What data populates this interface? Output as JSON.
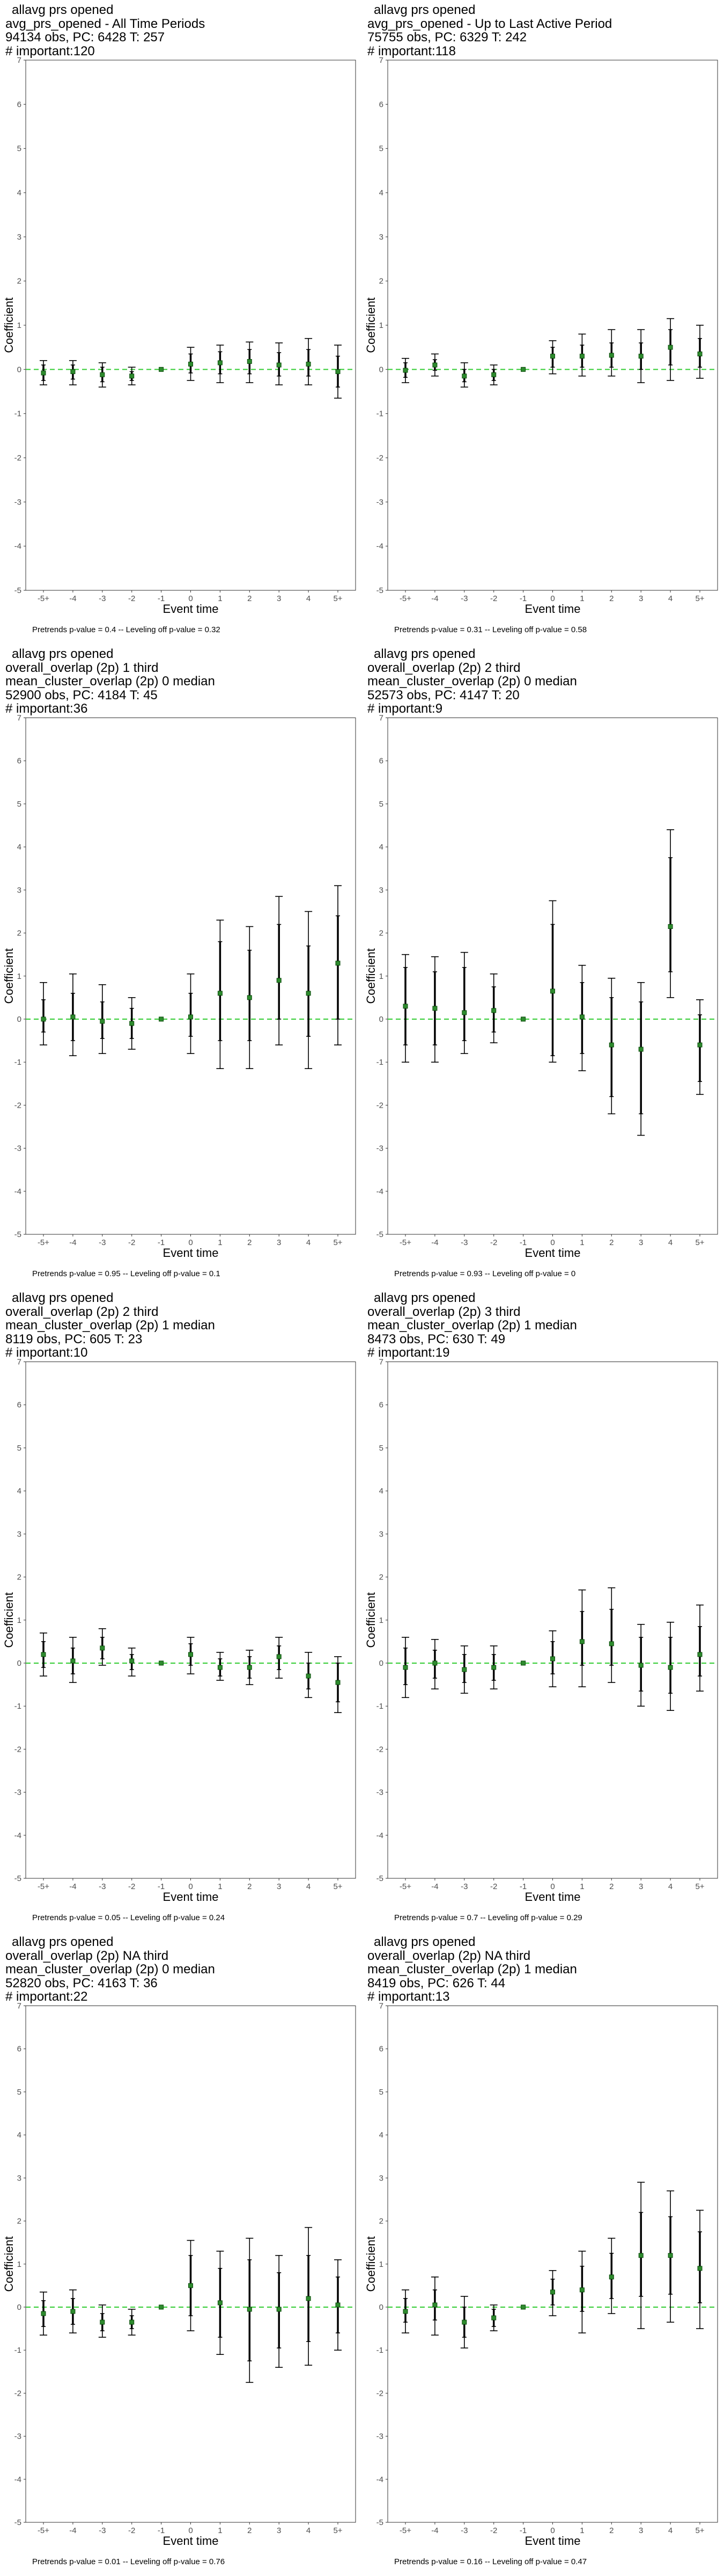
{
  "chart_data": [
    {
      "type": "scatter",
      "title_lines": [
        " allavg prs opened",
        "avg_prs_opened - All Time Periods",
        "94134 obs, PC: 6428 T: 257",
        "# important:120"
      ],
      "footnote": "Pretrends p-value = 0.4 -- Leveling off p-value = 0.32",
      "xlabel": "Event time",
      "ylabel": "Coefficient",
      "ylim": [
        -5,
        7
      ],
      "categories": [
        "-5+",
        "-4",
        "-3",
        "-2",
        "-1",
        "0",
        "1",
        "2",
        "3",
        "4",
        "5+"
      ],
      "estimates": [
        -0.08,
        -0.05,
        -0.12,
        -0.15,
        0,
        0.12,
        0.15,
        0.18,
        0.1,
        0.12,
        -0.05
      ],
      "ci_outer": [
        [
          -0.35,
          0.2
        ],
        [
          -0.35,
          0.2
        ],
        [
          -0.4,
          0.15
        ],
        [
          -0.35,
          0.05
        ],
        [
          0,
          0
        ],
        [
          -0.25,
          0.5
        ],
        [
          -0.3,
          0.55
        ],
        [
          -0.3,
          0.62
        ],
        [
          -0.35,
          0.6
        ],
        [
          -0.35,
          0.7
        ],
        [
          -0.65,
          0.55
        ]
      ],
      "ci_inner": [
        [
          -0.25,
          0.1
        ],
        [
          -0.22,
          0.1
        ],
        [
          -0.28,
          0.05
        ],
        [
          -0.25,
          -0.05
        ],
        [
          0,
          0
        ],
        [
          -0.08,
          0.35
        ],
        [
          -0.1,
          0.4
        ],
        [
          -0.1,
          0.45
        ],
        [
          -0.15,
          0.38
        ],
        [
          -0.15,
          0.45
        ],
        [
          -0.4,
          0.3
        ]
      ]
    },
    {
      "type": "scatter",
      "title_lines": [
        " allavg prs opened",
        "avg_prs_opened - Up to Last Active Period",
        "75755 obs, PC: 6329 T: 242",
        "# important:118"
      ],
      "footnote": "Pretrends p-value = 0.31 -- Leveling off p-value = 0.58",
      "xlabel": "Event time",
      "ylabel": "Coefficient",
      "ylim": [
        -5,
        7
      ],
      "categories": [
        "-5+",
        "-4",
        "-3",
        "-2",
        "-1",
        "0",
        "1",
        "2",
        "3",
        "4",
        "5+"
      ],
      "estimates": [
        -0.02,
        0.1,
        -0.15,
        -0.12,
        0,
        0.3,
        0.3,
        0.32,
        0.3,
        0.5,
        0.35
      ],
      "ci_outer": [
        [
          -0.3,
          0.25
        ],
        [
          -0.15,
          0.35
        ],
        [
          -0.4,
          0.15
        ],
        [
          -0.35,
          0.1
        ],
        [
          0,
          0
        ],
        [
          -0.1,
          0.65
        ],
        [
          -0.15,
          0.8
        ],
        [
          -0.15,
          0.9
        ],
        [
          -0.3,
          0.9
        ],
        [
          -0.25,
          1.15
        ],
        [
          -0.2,
          1.0
        ]
      ],
      "ci_inner": [
        [
          -0.18,
          0.15
        ],
        [
          -0.02,
          0.22
        ],
        [
          -0.28,
          0.0
        ],
        [
          -0.25,
          0.0
        ],
        [
          0,
          0
        ],
        [
          0.05,
          0.5
        ],
        [
          0.05,
          0.55
        ],
        [
          0.05,
          0.6
        ],
        [
          0.0,
          0.6
        ],
        [
          0.1,
          0.9
        ],
        [
          0.05,
          0.7
        ]
      ]
    },
    {
      "type": "scatter",
      "title_lines": [
        " allavg prs opened",
        "overall_overlap (2p) 1 third",
        "mean_cluster_overlap (2p) 0 median",
        "52900 obs, PC: 4184 T: 45",
        "# important:36"
      ],
      "footnote": "Pretrends p-value = 0.95 -- Leveling off p-value = 0.1",
      "xlabel": "Event time",
      "ylabel": "Coefficient",
      "ylim": [
        -5,
        7
      ],
      "categories": [
        "-5+",
        "-4",
        "-3",
        "-2",
        "-1",
        "0",
        "1",
        "2",
        "3",
        "4",
        "5+"
      ],
      "estimates": [
        0.0,
        0.05,
        -0.05,
        -0.1,
        0,
        0.05,
        0.6,
        0.5,
        0.9,
        0.6,
        1.3
      ],
      "ci_outer": [
        [
          -0.6,
          0.85
        ],
        [
          -0.85,
          1.05
        ],
        [
          -0.8,
          0.8
        ],
        [
          -0.7,
          0.5
        ],
        [
          0,
          0
        ],
        [
          -0.8,
          1.05
        ],
        [
          -1.15,
          2.3
        ],
        [
          -1.15,
          2.15
        ],
        [
          -0.6,
          2.85
        ],
        [
          -1.15,
          2.5
        ],
        [
          -0.6,
          3.1
        ]
      ],
      "ci_inner": [
        [
          -0.3,
          0.45
        ],
        [
          -0.5,
          0.6
        ],
        [
          -0.45,
          0.4
        ],
        [
          -0.45,
          0.25
        ],
        [
          0,
          0
        ],
        [
          -0.4,
          0.6
        ],
        [
          -0.5,
          1.8
        ],
        [
          -0.5,
          1.6
        ],
        [
          0.0,
          2.2
        ],
        [
          -0.4,
          1.7
        ],
        [
          0.0,
          2.4
        ]
      ]
    },
    {
      "type": "scatter",
      "title_lines": [
        " allavg prs opened",
        "overall_overlap (2p) 2 third",
        "mean_cluster_overlap (2p) 0 median",
        "52573 obs, PC: 4147 T: 20",
        "# important:9"
      ],
      "footnote": "Pretrends p-value = 0.93 -- Leveling off p-value = 0",
      "xlabel": "Event time",
      "ylabel": "Coefficient",
      "ylim": [
        -5,
        7
      ],
      "categories": [
        "-5+",
        "-4",
        "-3",
        "-2",
        "-1",
        "0",
        "1",
        "2",
        "3",
        "4",
        "5+"
      ],
      "estimates": [
        0.3,
        0.25,
        0.15,
        0.2,
        0,
        0.65,
        0.05,
        -0.6,
        -0.7,
        2.15,
        -0.6
      ],
      "ci_outer": [
        [
          -1.0,
          1.5
        ],
        [
          -1.0,
          1.45
        ],
        [
          -0.8,
          1.55
        ],
        [
          -0.55,
          1.05
        ],
        [
          0,
          0
        ],
        [
          -1.0,
          2.75
        ],
        [
          -1.2,
          1.25
        ],
        [
          -2.2,
          0.95
        ],
        [
          -2.7,
          0.85
        ],
        [
          0.5,
          4.4
        ],
        [
          -1.75,
          0.45
        ]
      ],
      "ci_inner": [
        [
          -0.6,
          1.2
        ],
        [
          -0.6,
          1.1
        ],
        [
          -0.5,
          1.2
        ],
        [
          -0.3,
          0.75
        ],
        [
          0,
          0
        ],
        [
          -0.85,
          2.2
        ],
        [
          -0.8,
          0.85
        ],
        [
          -1.8,
          0.5
        ],
        [
          -2.2,
          0.4
        ],
        [
          1.1,
          3.75
        ],
        [
          -1.45,
          0.1
        ]
      ]
    },
    {
      "type": "scatter",
      "title_lines": [
        " allavg prs opened",
        "overall_overlap (2p) 2 third",
        "mean_cluster_overlap (2p) 1 median",
        "8119 obs, PC: 605 T: 23",
        "# important:10"
      ],
      "footnote": "Pretrends p-value = 0.05 -- Leveling off p-value = 0.24",
      "xlabel": "Event time",
      "ylabel": "Coefficient",
      "ylim": [
        -5,
        7
      ],
      "categories": [
        "-5+",
        "-4",
        "-3",
        "-2",
        "-1",
        "0",
        "1",
        "2",
        "3",
        "4",
        "5+"
      ],
      "estimates": [
        0.2,
        0.05,
        0.35,
        0.05,
        0,
        0.2,
        -0.1,
        -0.1,
        0.15,
        -0.3,
        -0.45
      ],
      "ci_outer": [
        [
          -0.3,
          0.7
        ],
        [
          -0.45,
          0.6
        ],
        [
          -0.05,
          0.8
        ],
        [
          -0.3,
          0.35
        ],
        [
          0,
          0
        ],
        [
          -0.25,
          0.6
        ],
        [
          -0.4,
          0.25
        ],
        [
          -0.5,
          0.3
        ],
        [
          -0.35,
          0.6
        ],
        [
          -0.8,
          0.25
        ],
        [
          -1.15,
          0.15
        ]
      ],
      "ci_inner": [
        [
          -0.1,
          0.5
        ],
        [
          -0.25,
          0.35
        ],
        [
          0.1,
          0.6
        ],
        [
          -0.15,
          0.2
        ],
        [
          0,
          0
        ],
        [
          -0.05,
          0.45
        ],
        [
          -0.3,
          0.1
        ],
        [
          -0.35,
          0.15
        ],
        [
          -0.15,
          0.4
        ],
        [
          -0.6,
          0.0
        ],
        [
          -0.9,
          0.0
        ]
      ]
    },
    {
      "type": "scatter",
      "title_lines": [
        " allavg prs opened",
        "overall_overlap (2p) 3 third",
        "mean_cluster_overlap (2p) 1 median",
        "8473 obs, PC: 630 T: 49",
        "# important:19"
      ],
      "footnote": "Pretrends p-value = 0.7 -- Leveling off p-value = 0.29",
      "xlabel": "Event time",
      "ylabel": "Coefficient",
      "ylim": [
        -5,
        7
      ],
      "categories": [
        "-5+",
        "-4",
        "-3",
        "-2",
        "-1",
        "0",
        "1",
        "2",
        "3",
        "4",
        "5+"
      ],
      "estimates": [
        -0.1,
        0.0,
        -0.15,
        -0.1,
        0,
        0.1,
        0.5,
        0.45,
        -0.05,
        -0.1,
        0.2
      ],
      "ci_outer": [
        [
          -0.8,
          0.6
        ],
        [
          -0.6,
          0.55
        ],
        [
          -0.7,
          0.4
        ],
        [
          -0.6,
          0.4
        ],
        [
          0,
          0
        ],
        [
          -0.55,
          0.75
        ],
        [
          -0.55,
          1.7
        ],
        [
          -0.45,
          1.75
        ],
        [
          -1.0,
          0.9
        ],
        [
          -1.1,
          0.95
        ],
        [
          -0.65,
          1.35
        ]
      ],
      "ci_inner": [
        [
          -0.5,
          0.35
        ],
        [
          -0.35,
          0.3
        ],
        [
          -0.45,
          0.2
        ],
        [
          -0.4,
          0.2
        ],
        [
          0,
          0
        ],
        [
          -0.25,
          0.5
        ],
        [
          -0.05,
          1.2
        ],
        [
          -0.05,
          1.25
        ],
        [
          -0.65,
          0.6
        ],
        [
          -0.7,
          0.6
        ],
        [
          -0.3,
          0.85
        ]
      ]
    },
    {
      "type": "scatter",
      "title_lines": [
        " allavg prs opened",
        "overall_overlap (2p) NA third",
        "mean_cluster_overlap (2p) 0 median",
        "52820 obs, PC: 4163 T: 36",
        "# important:22"
      ],
      "footnote": "Pretrends p-value = 0.01 -- Leveling off p-value = 0.76",
      "xlabel": "Event time",
      "ylabel": "Coefficient",
      "ylim": [
        -5,
        7
      ],
      "categories": [
        "-5+",
        "-4",
        "-3",
        "-2",
        "-1",
        "0",
        "1",
        "2",
        "3",
        "4",
        "5+"
      ],
      "estimates": [
        -0.15,
        -0.1,
        -0.35,
        -0.35,
        0,
        0.5,
        0.1,
        -0.05,
        -0.05,
        0.2,
        0.05
      ],
      "ci_outer": [
        [
          -0.65,
          0.35
        ],
        [
          -0.6,
          0.4
        ],
        [
          -0.7,
          0.05
        ],
        [
          -0.65,
          -0.05
        ],
        [
          0,
          0
        ],
        [
          -0.55,
          1.55
        ],
        [
          -1.1,
          1.3
        ],
        [
          -1.75,
          1.6
        ],
        [
          -1.4,
          1.2
        ],
        [
          -1.35,
          1.85
        ],
        [
          -1.0,
          1.1
        ]
      ],
      "ci_inner": [
        [
          -0.45,
          0.15
        ],
        [
          -0.4,
          0.2
        ],
        [
          -0.55,
          -0.15
        ],
        [
          -0.5,
          -0.2
        ],
        [
          0,
          0
        ],
        [
          -0.2,
          1.2
        ],
        [
          -0.7,
          0.9
        ],
        [
          -1.25,
          1.1
        ],
        [
          -0.95,
          0.8
        ],
        [
          -0.8,
          1.2
        ],
        [
          -0.6,
          0.7
        ]
      ]
    },
    {
      "type": "scatter",
      "title_lines": [
        " allavg prs opened",
        "overall_overlap (2p) NA third",
        "mean_cluster_overlap (2p) 1 median",
        "8419 obs, PC: 626 T: 44",
        "# important:13"
      ],
      "footnote": "Pretrends p-value = 0.16 -- Leveling off p-value = 0.47",
      "xlabel": "Event time",
      "ylabel": "Coefficient",
      "ylim": [
        -5,
        7
      ],
      "categories": [
        "-5+",
        "-4",
        "-3",
        "-2",
        "-1",
        "0",
        "1",
        "2",
        "3",
        "4",
        "5+"
      ],
      "estimates": [
        -0.1,
        0.05,
        -0.35,
        -0.25,
        0,
        0.35,
        0.4,
        0.7,
        1.2,
        1.2,
        0.9
      ],
      "ci_outer": [
        [
          -0.6,
          0.4
        ],
        [
          -0.65,
          0.7
        ],
        [
          -0.95,
          0.25
        ],
        [
          -0.55,
          0.05
        ],
        [
          0,
          0
        ],
        [
          -0.2,
          0.85
        ],
        [
          -0.6,
          1.3
        ],
        [
          -0.15,
          1.6
        ],
        [
          -0.5,
          2.9
        ],
        [
          -0.35,
          2.7
        ],
        [
          -0.5,
          2.25
        ]
      ],
      "ci_inner": [
        [
          -0.35,
          0.2
        ],
        [
          -0.3,
          0.4
        ],
        [
          -0.7,
          0.0
        ],
        [
          -0.45,
          -0.05
        ],
        [
          0,
          0
        ],
        [
          0.05,
          0.65
        ],
        [
          -0.1,
          0.95
        ],
        [
          0.2,
          1.25
        ],
        [
          0.25,
          2.2
        ],
        [
          0.3,
          2.1
        ],
        [
          0.1,
          1.75
        ]
      ]
    }
  ]
}
